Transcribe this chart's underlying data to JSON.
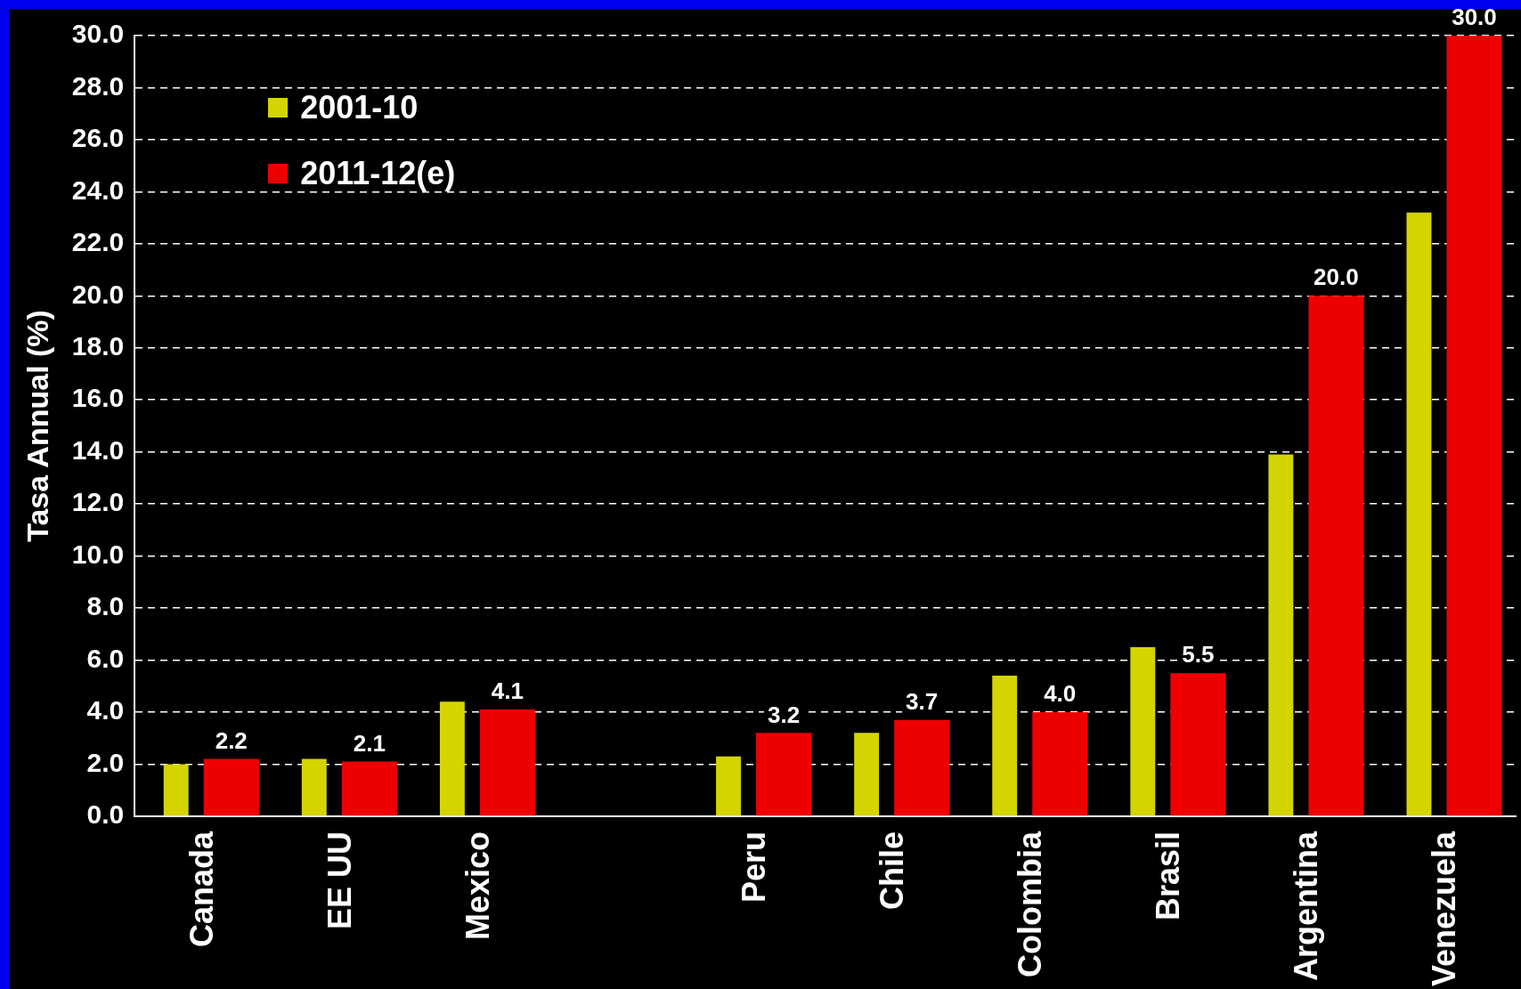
{
  "chart_data": {
    "type": "bar",
    "ylabel": "Tasa Annual (%)",
    "categories": [
      "Canada",
      "EE UU",
      "Mexico",
      null,
      "Peru",
      "Chile",
      "Colombia",
      "Brasil",
      "Argentina",
      "Venezuela"
    ],
    "series": [
      {
        "name": "2001-10",
        "color": "#d4d400",
        "values": [
          2.0,
          2.2,
          4.4,
          null,
          2.3,
          3.2,
          5.4,
          6.5,
          13.9,
          23.2
        ]
      },
      {
        "name": "2011-12(e)",
        "color": "#ee0000",
        "values": [
          2.2,
          2.1,
          4.1,
          null,
          3.2,
          3.7,
          4.0,
          5.5,
          20.0,
          30.0
        ],
        "value_labels": [
          "2.2",
          "2.1",
          "4.1",
          null,
          "3.2",
          "3.7",
          "4.0",
          "5.5",
          "20.0",
          "30.0"
        ]
      }
    ],
    "ylim": [
      0,
      30
    ],
    "yticks": [
      {
        "value": 0,
        "label": "0.0"
      },
      {
        "value": 2,
        "label": "2.0"
      },
      {
        "value": 4,
        "label": "4.0"
      },
      {
        "value": 6,
        "label": "6.0"
      },
      {
        "value": 8,
        "label": "8.0"
      },
      {
        "value": 10,
        "label": "10.0"
      },
      {
        "value": 12,
        "label": "12.0"
      },
      {
        "value": 14,
        "label": "14.0"
      },
      {
        "value": 16,
        "label": "16.0"
      },
      {
        "value": 18,
        "label": "18.0"
      },
      {
        "value": 20,
        "label": "20.0"
      },
      {
        "value": 22,
        "label": "22.0"
      },
      {
        "value": 24,
        "label": "24.0"
      },
      {
        "value": 26,
        "label": "26.0"
      },
      {
        "value": 28,
        "label": "28.0"
      },
      {
        "value": 30,
        "label": "30.0"
      }
    ],
    "grid": "y",
    "legend": "top left"
  }
}
